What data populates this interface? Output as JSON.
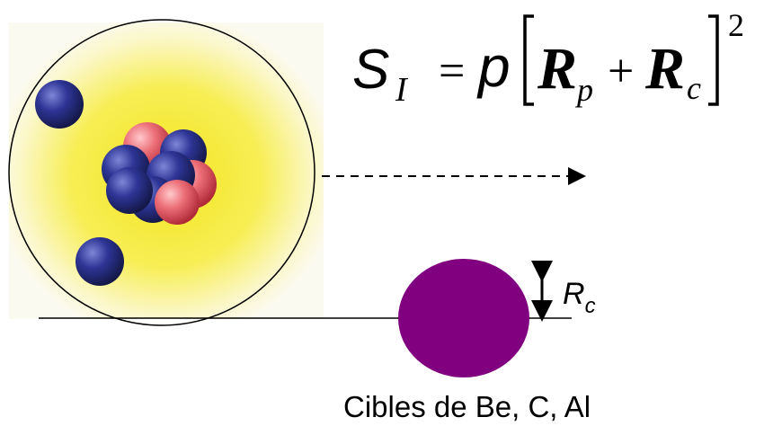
{
  "formula": {
    "sigma": "S",
    "sigma_sub": "I",
    "equals": "=",
    "pi": "p",
    "r_p": "R",
    "r_p_sub": "p",
    "plus": "+",
    "r_c": "R",
    "r_c_sub": "c",
    "exponent": "2"
  },
  "target_radius_label": {
    "main": "R",
    "sub": "c"
  },
  "caption": "Cibles de Be, C, Al",
  "colors": {
    "nucleus_glow": "#f7ee3a",
    "neutron": "#2a2f8a",
    "proton": "#e8606a",
    "target": "#800080"
  }
}
